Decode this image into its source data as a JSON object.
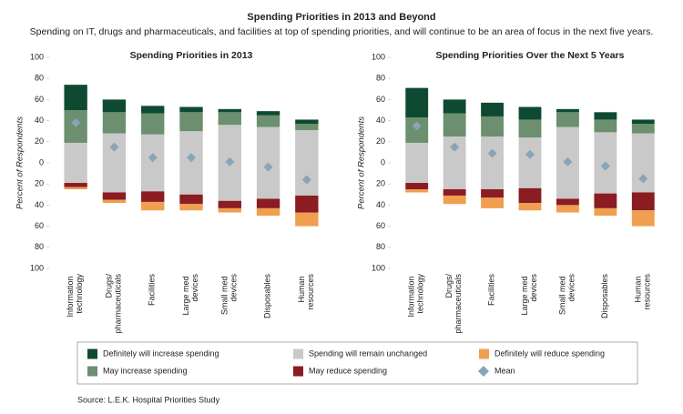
{
  "title": "Spending Priorities in 2013 and Beyond",
  "subtitle": "Spending on IT, drugs and pharmaceuticals, and facilities at top of spending priorities, and will continue to be an area of focus in the next five years.",
  "source": "Source: L.E.K. Hospital Priorities Study",
  "chart_data": [
    {
      "type": "bar",
      "title": "Spending Priorities in 2013",
      "ylabel": "Percent of Respondents",
      "categories": [
        "Information technology",
        "Drugs/pharmaceuticals",
        "Facilities",
        "Large med devices",
        "Small med devices",
        "Disposables",
        "Human resources"
      ],
      "ylim": [
        -100,
        100
      ],
      "yticks": [
        100,
        80,
        60,
        40,
        20,
        0,
        {
          "value": -20,
          "label": "20"
        },
        {
          "value": -40,
          "label": "40"
        },
        {
          "value": -60,
          "label": "60"
        },
        {
          "value": -80,
          "label": "80"
        },
        {
          "value": -100,
          "label": "100"
        }
      ],
      "series": [
        {
          "name": "Definitely will increase spending",
          "color": "#0e4a31",
          "values": [
            24,
            12,
            7,
            5,
            3,
            4,
            4
          ]
        },
        {
          "name": "May increase spending",
          "color": "#6b8f6f",
          "values": [
            31,
            20,
            20,
            18,
            12,
            11,
            6
          ]
        },
        {
          "name": "Spending will remain unchanged",
          "color": "#c9c9c9",
          "values": [
            38,
            56,
            54,
            60,
            72,
            68,
            62
          ]
        },
        {
          "name": "May reduce spending",
          "color": "#8a1c22",
          "values": [
            4,
            7,
            10,
            9,
            7,
            9,
            16
          ]
        },
        {
          "name": "Definitely will reduce spending",
          "color": "#ef9f4f",
          "values": [
            2,
            3,
            8,
            6,
            4,
            7,
            13
          ]
        },
        {
          "name": "Mean",
          "color": "#86a5b8",
          "values": [
            38,
            15,
            5,
            5,
            1,
            -4,
            -16
          ]
        }
      ]
    },
    {
      "type": "bar",
      "title": "Spending Priorities Over the Next 5 Years",
      "ylabel": "Percent of Respondents",
      "categories": [
        "Information technology",
        "Drugs/pharmaceuticals",
        "Facilities",
        "Large med devices",
        "Small med devices",
        "Disposables",
        "Human resources"
      ],
      "ylim": [
        -100,
        100
      ],
      "yticks": [
        100,
        80,
        60,
        40,
        20,
        0,
        {
          "value": -20,
          "label": "20"
        },
        {
          "value": -40,
          "label": "40"
        },
        {
          "value": -60,
          "label": "60"
        },
        {
          "value": -80,
          "label": "80"
        },
        {
          "value": -100,
          "label": "100"
        }
      ],
      "series": [
        {
          "values": [
            28,
            13,
            13,
            12,
            3,
            7,
            4
          ]
        },
        {
          "values": [
            24,
            22,
            19,
            17,
            14,
            12,
            9
          ]
        },
        {
          "values": [
            38,
            50,
            50,
            48,
            68,
            58,
            56
          ]
        },
        {
          "values": [
            6,
            6,
            8,
            14,
            6,
            14,
            17
          ]
        },
        {
          "values": [
            3,
            8,
            10,
            7,
            7,
            7,
            15
          ]
        },
        {
          "values": [
            35,
            15,
            9,
            8,
            1,
            -3,
            -15
          ]
        }
      ]
    }
  ]
}
